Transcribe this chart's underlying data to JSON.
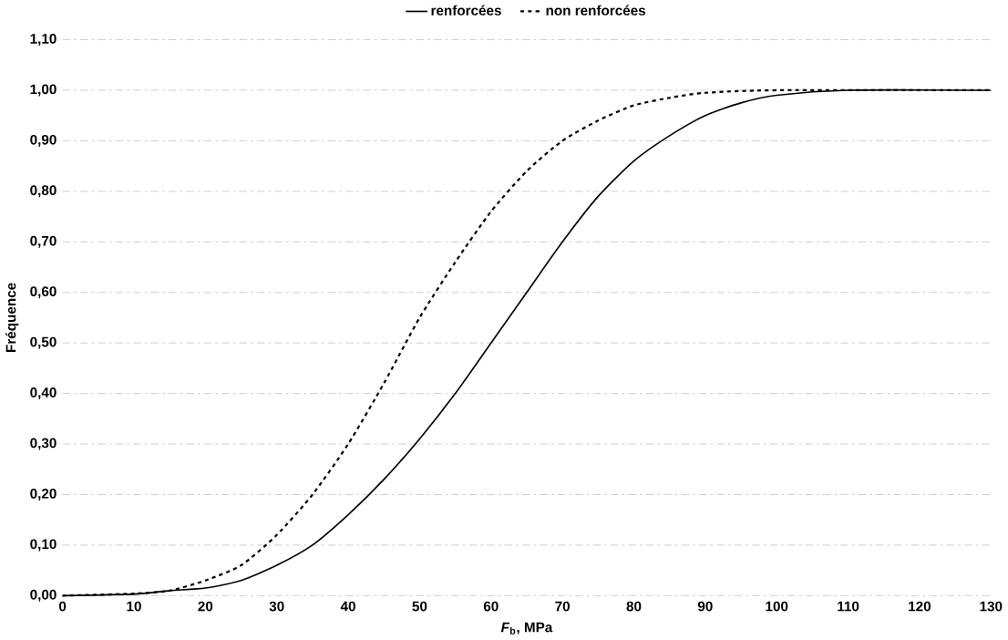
{
  "chart_data": {
    "type": "line",
    "xlabel": "*F*$_{b}$, MPa",
    "ylabel": "Fréquence",
    "series": [
      {
        "name": "renforcées",
        "color": "#000000",
        "line_style": "solid",
        "x": [
          0,
          10,
          15,
          20,
          25,
          30,
          35,
          40,
          45,
          50,
          55,
          60,
          65,
          70,
          75,
          80,
          85,
          90,
          95,
          100,
          110,
          130
        ],
        "values": [
          0,
          0.003,
          0.01,
          0.015,
          0.03,
          0.06,
          0.1,
          0.16,
          0.23,
          0.31,
          0.4,
          0.5,
          0.6,
          0.7,
          0.79,
          0.86,
          0.91,
          0.95,
          0.975,
          0.99,
          1.0,
          1.0
        ]
      },
      {
        "name": "non renforcées",
        "color": "#000000",
        "line_style": "dotted",
        "x": [
          0,
          10,
          15,
          20,
          25,
          30,
          35,
          40,
          45,
          50,
          55,
          60,
          65,
          70,
          75,
          80,
          85,
          90,
          100,
          130
        ],
        "values": [
          0,
          0.004,
          0.01,
          0.03,
          0.06,
          0.12,
          0.2,
          0.3,
          0.42,
          0.55,
          0.66,
          0.76,
          0.84,
          0.9,
          0.94,
          0.97,
          0.985,
          0.995,
          1.0,
          1.0
        ]
      }
    ],
    "xlim": [
      0,
      130
    ],
    "xticks": [
      0,
      10,
      20,
      30,
      40,
      50,
      60,
      70,
      80,
      90,
      100,
      110,
      120,
      130
    ],
    "ylim": [
      0,
      1.1
    ],
    "yticks": [
      {
        "value": 0,
        "label": "0,00"
      },
      {
        "value": 0.1,
        "label": "0,10"
      },
      {
        "value": 0.2,
        "label": "0,20"
      },
      {
        "value": 0.3,
        "label": "0,30"
      },
      {
        "value": 0.4,
        "label": "0,40"
      },
      {
        "value": 0.5,
        "label": "0,50"
      },
      {
        "value": 0.6,
        "label": "0,60"
      },
      {
        "value": 0.7,
        "label": "0,70"
      },
      {
        "value": 0.8,
        "label": "0,80"
      },
      {
        "value": 0.9,
        "label": "0,90"
      },
      {
        "value": 1.0,
        "label": "1,00"
      },
      {
        "value": 1.1,
        "label": "1,10"
      }
    ],
    "grid": "y",
    "legend": "top",
    "marker": "none"
  }
}
